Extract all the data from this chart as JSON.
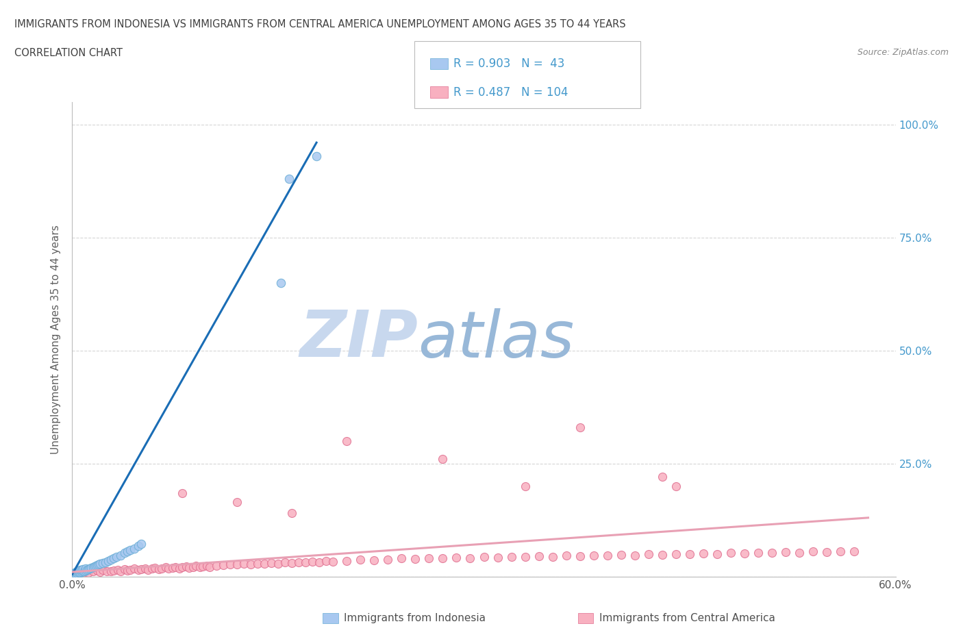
{
  "title_line1": "IMMIGRANTS FROM INDONESIA VS IMMIGRANTS FROM CENTRAL AMERICA UNEMPLOYMENT AMONG AGES 35 TO 44 YEARS",
  "title_line2": "CORRELATION CHART",
  "source_text": "Source: ZipAtlas.com",
  "ylabel": "Unemployment Among Ages 35 to 44 years",
  "watermark_zip": "ZIP",
  "watermark_atlas": "atlas",
  "legend_entries": [
    {
      "label": "Immigrants from Indonesia",
      "color": "#a8c8f0",
      "R": 0.903,
      "N": 43
    },
    {
      "label": "Immigrants from Central America",
      "color": "#f8b0c0",
      "R": 0.487,
      "N": 104
    }
  ],
  "xlim": [
    0.0,
    0.6
  ],
  "ylim": [
    0.0,
    1.05
  ],
  "x_ticks": [
    0.0,
    0.1,
    0.2,
    0.3,
    0.4,
    0.5,
    0.6
  ],
  "y_ticks": [
    0.0,
    0.25,
    0.5,
    0.75,
    1.0
  ],
  "indonesia_scatter_x": [
    0.001,
    0.002,
    0.003,
    0.003,
    0.004,
    0.004,
    0.005,
    0.005,
    0.006,
    0.006,
    0.007,
    0.007,
    0.008,
    0.008,
    0.009,
    0.01,
    0.01,
    0.011,
    0.012,
    0.013,
    0.014,
    0.015,
    0.016,
    0.017,
    0.018,
    0.019,
    0.02,
    0.022,
    0.024,
    0.026,
    0.028,
    0.03,
    0.032,
    0.035,
    0.038,
    0.04,
    0.042,
    0.045,
    0.048,
    0.05,
    0.152,
    0.158,
    0.178
  ],
  "indonesia_scatter_y": [
    0.005,
    0.008,
    0.006,
    0.01,
    0.007,
    0.012,
    0.009,
    0.013,
    0.008,
    0.014,
    0.01,
    0.015,
    0.011,
    0.016,
    0.012,
    0.013,
    0.018,
    0.014,
    0.016,
    0.018,
    0.019,
    0.02,
    0.022,
    0.023,
    0.025,
    0.027,
    0.028,
    0.03,
    0.032,
    0.035,
    0.038,
    0.04,
    0.043,
    0.047,
    0.052,
    0.055,
    0.058,
    0.062,
    0.067,
    0.072,
    0.65,
    0.88,
    0.93
  ],
  "indonesia_trend_x": [
    0.0,
    0.178
  ],
  "indonesia_trend_y": [
    0.005,
    0.96
  ],
  "central_scatter_x": [
    0.005,
    0.008,
    0.01,
    0.012,
    0.015,
    0.018,
    0.02,
    0.022,
    0.025,
    0.028,
    0.03,
    0.033,
    0.035,
    0.038,
    0.04,
    0.042,
    0.045,
    0.048,
    0.05,
    0.053,
    0.055,
    0.058,
    0.06,
    0.063,
    0.065,
    0.068,
    0.07,
    0.073,
    0.075,
    0.078,
    0.08,
    0.083,
    0.085,
    0.088,
    0.09,
    0.093,
    0.095,
    0.098,
    0.1,
    0.105,
    0.11,
    0.115,
    0.12,
    0.125,
    0.13,
    0.135,
    0.14,
    0.145,
    0.15,
    0.155,
    0.16,
    0.165,
    0.17,
    0.175,
    0.18,
    0.185,
    0.19,
    0.2,
    0.21,
    0.22,
    0.23,
    0.24,
    0.25,
    0.26,
    0.27,
    0.28,
    0.29,
    0.3,
    0.31,
    0.32,
    0.33,
    0.34,
    0.35,
    0.36,
    0.37,
    0.38,
    0.39,
    0.4,
    0.41,
    0.42,
    0.43,
    0.44,
    0.45,
    0.46,
    0.47,
    0.48,
    0.49,
    0.5,
    0.51,
    0.52,
    0.53,
    0.54,
    0.55,
    0.56,
    0.57,
    0.33,
    0.2,
    0.27,
    0.37,
    0.44,
    0.12,
    0.08,
    0.43,
    0.16
  ],
  "central_scatter_y": [
    0.01,
    0.008,
    0.012,
    0.009,
    0.011,
    0.013,
    0.01,
    0.014,
    0.012,
    0.011,
    0.013,
    0.015,
    0.012,
    0.016,
    0.013,
    0.015,
    0.017,
    0.014,
    0.016,
    0.018,
    0.015,
    0.017,
    0.019,
    0.016,
    0.018,
    0.02,
    0.017,
    0.019,
    0.021,
    0.018,
    0.02,
    0.022,
    0.019,
    0.021,
    0.023,
    0.02,
    0.022,
    0.024,
    0.021,
    0.023,
    0.025,
    0.027,
    0.026,
    0.028,
    0.027,
    0.029,
    0.028,
    0.03,
    0.029,
    0.031,
    0.03,
    0.032,
    0.031,
    0.033,
    0.032,
    0.034,
    0.033,
    0.035,
    0.037,
    0.036,
    0.038,
    0.04,
    0.039,
    0.041,
    0.04,
    0.042,
    0.041,
    0.043,
    0.042,
    0.044,
    0.043,
    0.045,
    0.044,
    0.046,
    0.045,
    0.047,
    0.046,
    0.048,
    0.047,
    0.049,
    0.048,
    0.05,
    0.049,
    0.051,
    0.05,
    0.052,
    0.051,
    0.053,
    0.052,
    0.054,
    0.053,
    0.055,
    0.054,
    0.056,
    0.055,
    0.2,
    0.3,
    0.26,
    0.33,
    0.2,
    0.165,
    0.185,
    0.22,
    0.14
  ],
  "central_trend_x": [
    0.0,
    0.58
  ],
  "central_trend_y": [
    0.01,
    0.13
  ],
  "indonesia_color": "#a8c8f0",
  "indonesia_edge": "#6baed6",
  "central_color": "#f8b0c0",
  "central_edge": "#e07090",
  "trend_indonesia_color": "#1a6db5",
  "trend_central_color": "#e8a0b4",
  "background_color": "#ffffff",
  "grid_color": "#cccccc",
  "title_color": "#404040",
  "watermark_color1": "#c8d8ee",
  "watermark_color2": "#98b8d8",
  "legend_color": "#4499cc"
}
